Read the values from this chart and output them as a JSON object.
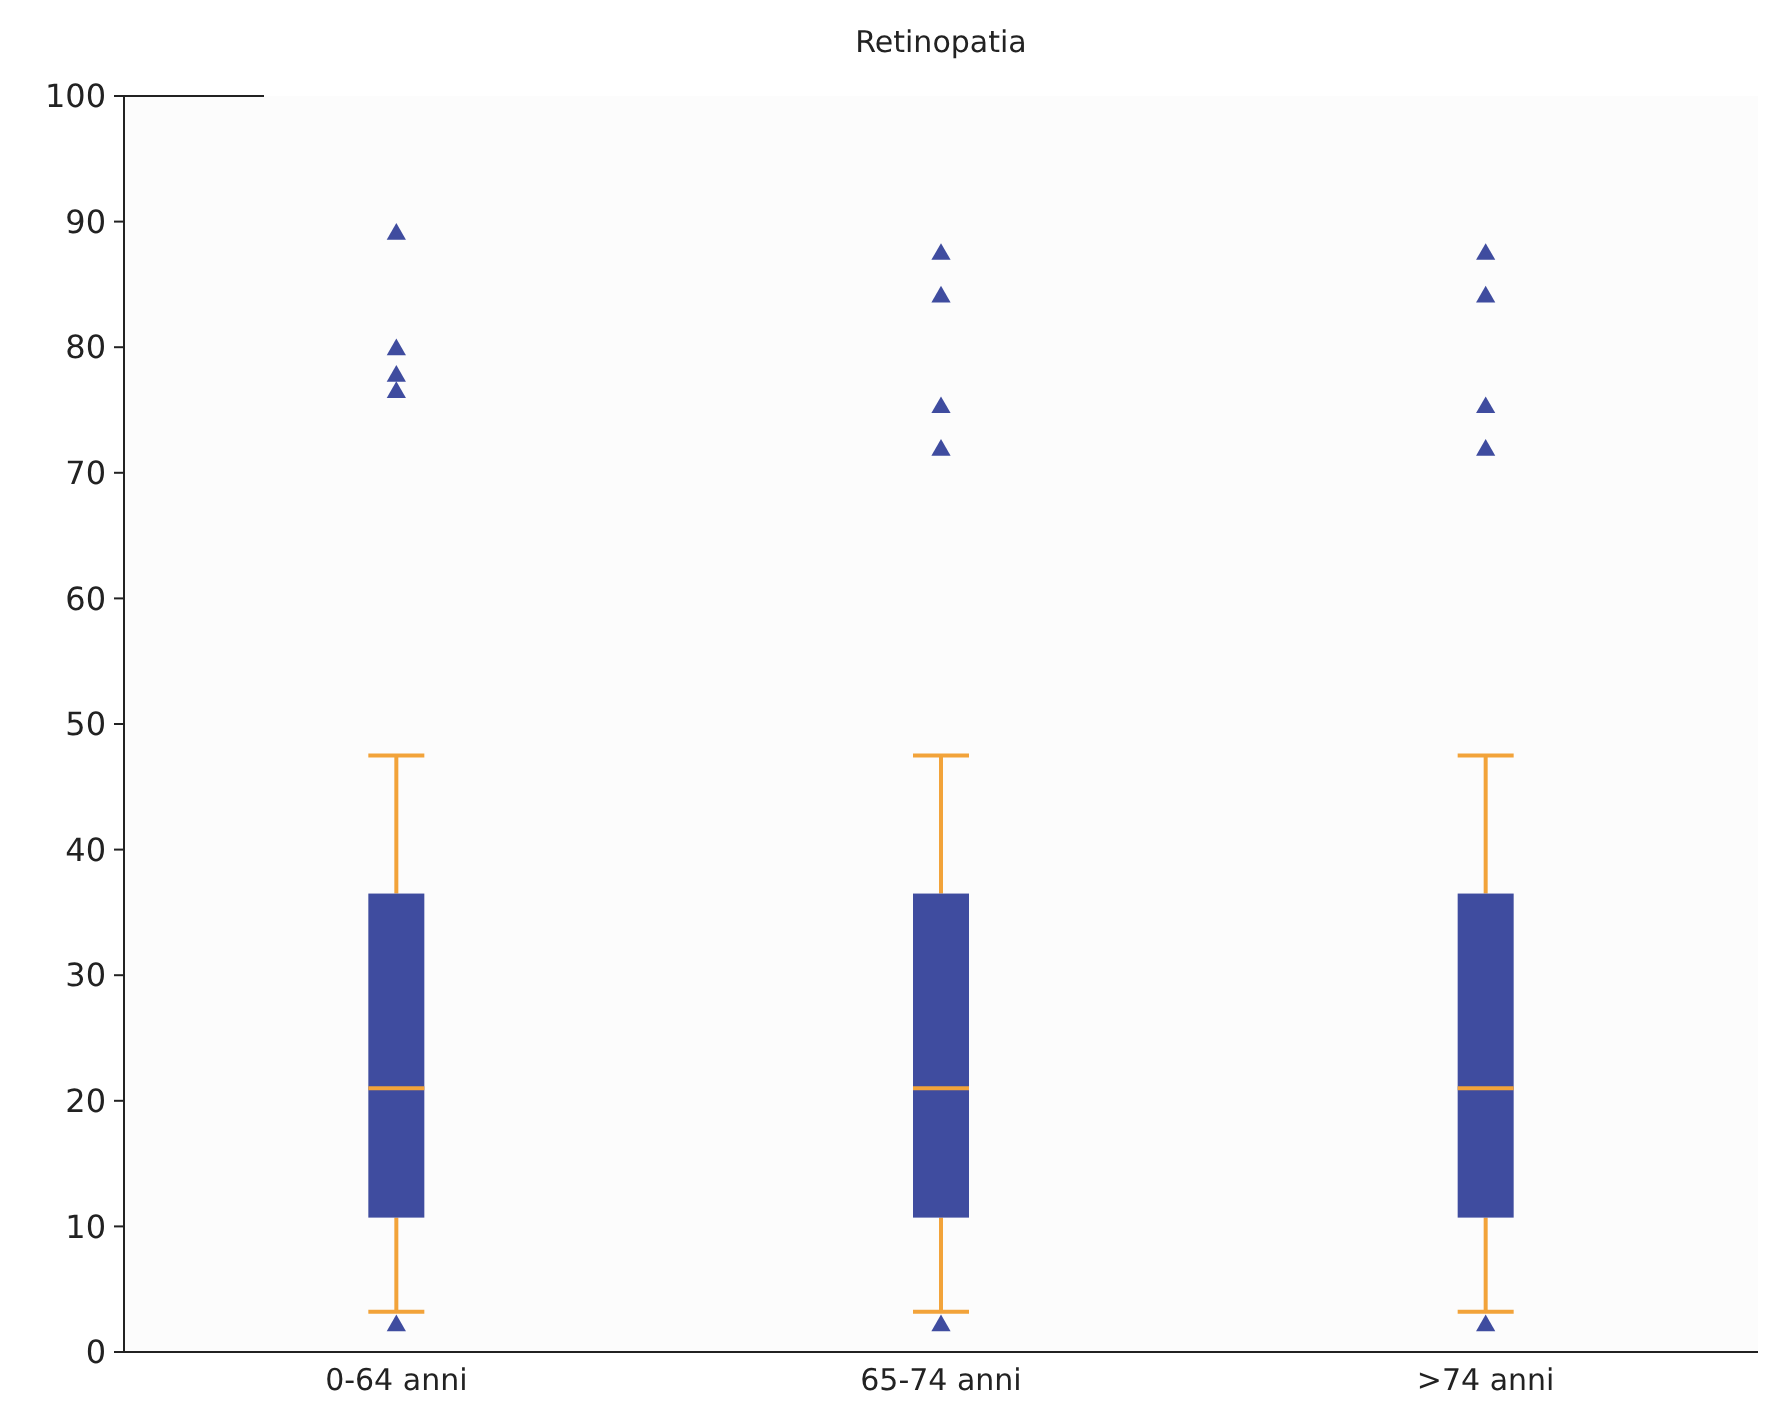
{
  "chart_data": {
    "type": "box",
    "title": "Retinopatia",
    "categories": [
      "0-64 anni",
      "65-74 anni",
      ">74 anni"
    ],
    "ylim": [
      0,
      100
    ],
    "yticks": [
      0,
      10,
      20,
      30,
      40,
      50,
      60,
      70,
      80,
      90,
      100
    ],
    "grid": false,
    "marker": "triangle",
    "series": [
      {
        "color": "#3f4c9f",
        "boxes": [
          {
            "low": 3.2,
            "q1": 10.7,
            "median": 21,
            "q3": 36.5,
            "high": 47.5,
            "outliers": [
              89,
              79.8,
              77.7,
              76.4,
              2.1
            ]
          },
          {
            "low": 3.2,
            "q1": 10.7,
            "median": 21,
            "q3": 36.5,
            "high": 47.5,
            "outliers": [
              87.4,
              84,
              75.2,
              71.8,
              2.1
            ]
          },
          {
            "low": 3.2,
            "q1": 10.7,
            "median": 21,
            "q3": 36.5,
            "high": 47.5,
            "outliers": [
              87.4,
              84,
              75.2,
              71.8,
              2.1
            ]
          }
        ]
      }
    ]
  }
}
